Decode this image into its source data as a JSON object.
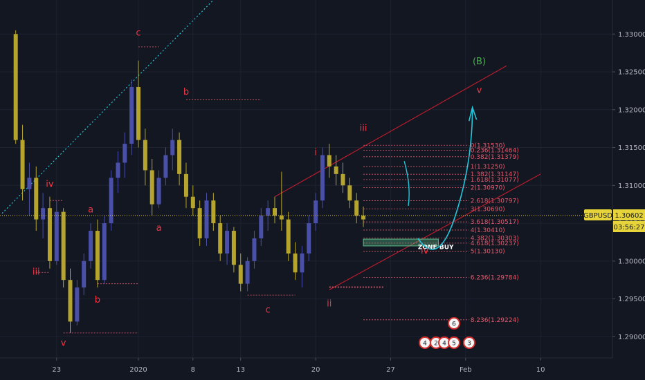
{
  "chart_data": {
    "type": "candlestick",
    "symbol": "GBPUSD",
    "last_price": "1.30602",
    "countdown": "03:56:27",
    "ylim": [
      1.2872,
      1.3345
    ],
    "y_ticks": [
      {
        "v": 1.33,
        "label": "1.33000"
      },
      {
        "v": 1.325,
        "label": "1.32500"
      },
      {
        "v": 1.32,
        "label": "1.32000"
      },
      {
        "v": 1.315,
        "label": "1.31500"
      },
      {
        "v": 1.31,
        "label": "1.31000"
      },
      {
        "v": 1.305,
        "label": "1.30500"
      },
      {
        "v": 1.3,
        "label": "1.30000"
      },
      {
        "v": 1.295,
        "label": "1.29500"
      },
      {
        "v": 1.29,
        "label": "1.29000"
      }
    ],
    "x_ticks": [
      {
        "i": 8,
        "label": "23"
      },
      {
        "i": 20,
        "label": "2020"
      },
      {
        "i": 28,
        "label": "8"
      },
      {
        "i": 35,
        "label": "13"
      },
      {
        "i": 46,
        "label": "20"
      },
      {
        "i": 57,
        "label": "27"
      },
      {
        "i": 68,
        "label": "Feb"
      },
      {
        "i": 79,
        "label": "10"
      }
    ],
    "colors": {
      "bull": "#4a4fa8",
      "bear": "#b5a52e",
      "price_line": "#d7c332",
      "wave": "#f23645",
      "channel": "#b71c2c",
      "teal": "#26c6da",
      "fib": "#e35a6b",
      "zone": "#5cbf8a",
      "green_label": "#4caf50"
    },
    "candles": [
      [
        1.33,
        1.3305,
        1.3155,
        1.316
      ],
      [
        1.316,
        1.318,
        1.308,
        1.3095
      ],
      [
        1.3095,
        1.313,
        1.306,
        1.311
      ],
      [
        1.311,
        1.3125,
        1.304,
        1.3055
      ],
      [
        1.3055,
        1.309,
        1.303,
        1.307
      ],
      [
        1.307,
        1.3085,
        1.299,
        1.3
      ],
      [
        1.3,
        1.308,
        1.2995,
        1.3065
      ],
      [
        1.3065,
        1.307,
        1.2965,
        1.2975
      ],
      [
        1.2975,
        1.299,
        1.2905,
        1.292
      ],
      [
        1.292,
        1.2975,
        1.2915,
        1.2965
      ],
      [
        1.2965,
        1.301,
        1.2955,
        1.3
      ],
      [
        1.3,
        1.305,
        1.299,
        1.304
      ],
      [
        1.304,
        1.3055,
        1.2965,
        1.2975
      ],
      [
        1.2975,
        1.306,
        1.297,
        1.305
      ],
      [
        1.305,
        1.312,
        1.304,
        1.311
      ],
      [
        1.311,
        1.3145,
        1.309,
        1.313
      ],
      [
        1.313,
        1.317,
        1.311,
        1.3155
      ],
      [
        1.3155,
        1.324,
        1.314,
        1.323
      ],
      [
        1.323,
        1.3265,
        1.315,
        1.316
      ],
      [
        1.316,
        1.3175,
        1.31,
        1.312
      ],
      [
        1.312,
        1.3135,
        1.306,
        1.3075
      ],
      [
        1.3075,
        1.312,
        1.307,
        1.311
      ],
      [
        1.311,
        1.315,
        1.31,
        1.314
      ],
      [
        1.314,
        1.3175,
        1.312,
        1.316
      ],
      [
        1.316,
        1.317,
        1.31,
        1.3115
      ],
      [
        1.3115,
        1.313,
        1.307,
        1.3085
      ],
      [
        1.3085,
        1.31,
        1.306,
        1.307
      ],
      [
        1.307,
        1.308,
        1.302,
        1.303
      ],
      [
        1.303,
        1.309,
        1.302,
        1.308
      ],
      [
        1.308,
        1.309,
        1.304,
        1.305
      ],
      [
        1.305,
        1.306,
        1.3,
        1.301
      ],
      [
        1.301,
        1.305,
        1.2995,
        1.304
      ],
      [
        1.304,
        1.3045,
        1.2985,
        1.2995
      ],
      [
        1.2995,
        1.301,
        1.296,
        1.297
      ],
      [
        1.297,
        1.3005,
        1.296,
        1.3
      ],
      [
        1.3,
        1.304,
        1.299,
        1.303
      ],
      [
        1.303,
        1.307,
        1.302,
        1.306
      ],
      [
        1.306,
        1.308,
        1.304,
        1.307
      ],
      [
        1.307,
        1.3085,
        1.305,
        1.306
      ],
      [
        1.306,
        1.3118,
        1.304,
        1.3055
      ],
      [
        1.3055,
        1.3065,
        1.3,
        1.301
      ],
      [
        1.301,
        1.3025,
        1.2975,
        1.2985
      ],
      [
        1.2985,
        1.302,
        1.2965,
        1.301
      ],
      [
        1.301,
        1.306,
        1.3,
        1.305
      ],
      [
        1.305,
        1.309,
        1.304,
        1.308
      ],
      [
        1.308,
        1.315,
        1.307,
        1.314
      ],
      [
        1.314,
        1.3155,
        1.311,
        1.3125
      ],
      [
        1.3125,
        1.314,
        1.31,
        1.3115
      ],
      [
        1.3115,
        1.313,
        1.309,
        1.31
      ],
      [
        1.31,
        1.311,
        1.307,
        1.308
      ],
      [
        1.308,
        1.309,
        1.305,
        1.306
      ],
      [
        1.306,
        1.3072,
        1.3045,
        1.3055
      ]
    ],
    "candle_start_index": 2,
    "wave_labels": [
      {
        "text": "iv",
        "i": 7,
        "v": 1.3098,
        "color": "wave"
      },
      {
        "text": "iii",
        "i": 5,
        "v": 1.2982,
        "color": "wave"
      },
      {
        "text": "v",
        "i": 9,
        "v": 1.2888,
        "color": "wave"
      },
      {
        "text": "a",
        "i": 13,
        "v": 1.3064,
        "color": "wave"
      },
      {
        "text": "b",
        "i": 14,
        "v": 1.2945,
        "color": "wave"
      },
      {
        "text": "c",
        "i": 20,
        "v": 1.3298,
        "color": "wave"
      },
      {
        "text": "a",
        "i": 23,
        "v": 1.304,
        "color": "wave"
      },
      {
        "text": "b",
        "i": 27,
        "v": 1.322,
        "color": "wave"
      },
      {
        "text": "c",
        "i": 39,
        "v": 1.2932,
        "color": "wave"
      },
      {
        "text": "i",
        "i": 46,
        "v": 1.314,
        "color": "wave"
      },
      {
        "text": "ii",
        "i": 48,
        "v": 1.294,
        "color": "wave"
      },
      {
        "text": "iii",
        "i": 53,
        "v": 1.3172,
        "color": "wave"
      },
      {
        "text": "iv",
        "i": 62,
        "v": 1.301,
        "color": "wave"
      },
      {
        "text": "v",
        "i": 70,
        "v": 1.3222,
        "color": "wave"
      },
      {
        "text": "(B)",
        "i": 70,
        "v": 1.326,
        "color": "green_label"
      }
    ],
    "fib_levels": [
      {
        "label": "0(1.31530)",
        "v": 1.3153
      },
      {
        "label": "0.236(1.31464)",
        "v": 1.31464
      },
      {
        "label": "0.382(1.31379)",
        "v": 1.31379
      },
      {
        "label": "1(1.31250)",
        "v": 1.3125
      },
      {
        "label": "1.382(1.31147)",
        "v": 1.31147
      },
      {
        "label": "1.618(1.31077)",
        "v": 1.31077
      },
      {
        "label": "2(1.30970)",
        "v": 1.3097
      },
      {
        "label": "2.618(1.30797)",
        "v": 1.30797
      },
      {
        "label": "3(1.30690)",
        "v": 1.3069
      },
      {
        "label": "3.618(1.30517)",
        "v": 1.30517
      },
      {
        "label": "4(1.30410)",
        "v": 1.3041
      },
      {
        "label": "4.382(1.30303)",
        "v": 1.30303
      },
      {
        "label": "4.618(1.30237)",
        "v": 1.30237
      },
      {
        "label": "5(1.30130)",
        "v": 1.3013
      },
      {
        "label": "6.236(1.29784)",
        "v": 1.29784
      },
      {
        "label": "8.236(1.29224)",
        "v": 1.29224
      }
    ],
    "zone_label": "ZONE BUY",
    "event_icons": [
      "6",
      "4",
      "2",
      "4",
      "5",
      "3"
    ]
  }
}
